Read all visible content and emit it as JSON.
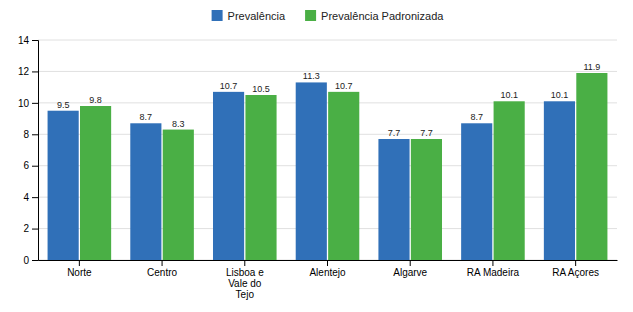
{
  "chart_data": {
    "type": "bar",
    "categories": [
      "Norte",
      "Centro",
      "Lisboa e\nVale do\nTejo",
      "Alentejo",
      "Algarve",
      "RA Madeira",
      "RA Açores"
    ],
    "series": [
      {
        "name": "Prevalência",
        "color": "#3070B8",
        "values": [
          9.5,
          8.7,
          10.7,
          11.3,
          7.7,
          8.7,
          10.1
        ]
      },
      {
        "name": "Prevalência Padronizada",
        "color": "#4AAF45",
        "values": [
          9.8,
          8.3,
          10.5,
          10.7,
          7.7,
          10.1,
          11.9
        ]
      }
    ],
    "ylim": [
      0,
      14
    ],
    "yticks": [
      0,
      2,
      4,
      6,
      8,
      10,
      12,
      14
    ],
    "grid": true,
    "legend": "top",
    "data_labels": true
  }
}
